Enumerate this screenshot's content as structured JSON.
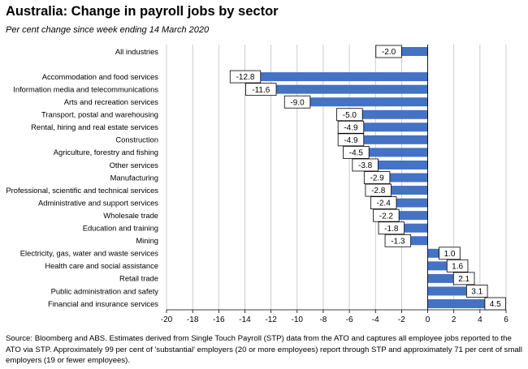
{
  "title": "Australia: Change in payroll jobs by sector",
  "subtitle": "Per cent change since week ending 14 March 2020",
  "source": "Source: Bloomberg and ABS. Estimates derived from Single Touch Payroll (STP) data from the ATO and captures all employee jobs reported to the ATO via STP. Approximately 99 per cent of 'substantial' employers (20 or more employees) report through STP and approximately 71 per cent of small employers (19 or fewer employees).",
  "colors": {
    "bar": "#4472C4",
    "grid": "#bfbfbf",
    "axis": "#000000"
  },
  "chart_data": {
    "type": "bar",
    "orientation": "horizontal",
    "title": "Australia: Change in payroll jobs by sector",
    "subtitle": "Per cent change since week ending 14 March 2020",
    "categories": [
      "All industries",
      "",
      "Accommodation and food services",
      "Information media and telecommunications",
      "Arts and recreation services",
      "Transport, postal and warehousing",
      "Rental, hiring and real estate services",
      "Construction",
      "Agriculture, forestry and fishing",
      "Other services",
      "Manufacturing",
      "Professional, scientific and technical services",
      "Administrative and support services",
      "Wholesale trade",
      "Education and training",
      "Mining",
      "Electricity, gas, water and waste services",
      "Health care and social assistance",
      "Retail trade",
      "Public administration and safety",
      "Financial and insurance services"
    ],
    "values": [
      -2.0,
      null,
      -12.8,
      -11.6,
      -9.0,
      -5.0,
      -4.9,
      -4.9,
      -4.5,
      -3.8,
      -2.9,
      -2.8,
      -2.4,
      -2.2,
      -1.8,
      -1.3,
      1.0,
      1.6,
      2.1,
      3.1,
      4.5
    ],
    "data_labels": [
      "-2.0",
      "",
      "-12.8",
      "-11.6",
      "-9.0",
      "-5.0",
      "-4.9",
      "-4.9",
      "-4.5",
      "-3.8",
      "-2.9",
      "-2.8",
      "-2.4",
      "-2.2",
      "-1.8",
      "-1.3",
      "1.0",
      "1.6",
      "2.1",
      "3.1",
      "4.5"
    ],
    "xlim": [
      -20,
      6
    ],
    "xticks": [
      -20,
      -18,
      -16,
      -14,
      -12,
      -10,
      -8,
      -6,
      -4,
      -2,
      0,
      2,
      4,
      6
    ],
    "xtick_labels": [
      "-20",
      "-18",
      "-16",
      "-14",
      "-12",
      "-10",
      "-8",
      "-6",
      "-4",
      "-2",
      "0",
      "2",
      "4",
      "6"
    ],
    "grid": "vertical",
    "xlabel": "",
    "ylabel": ""
  }
}
